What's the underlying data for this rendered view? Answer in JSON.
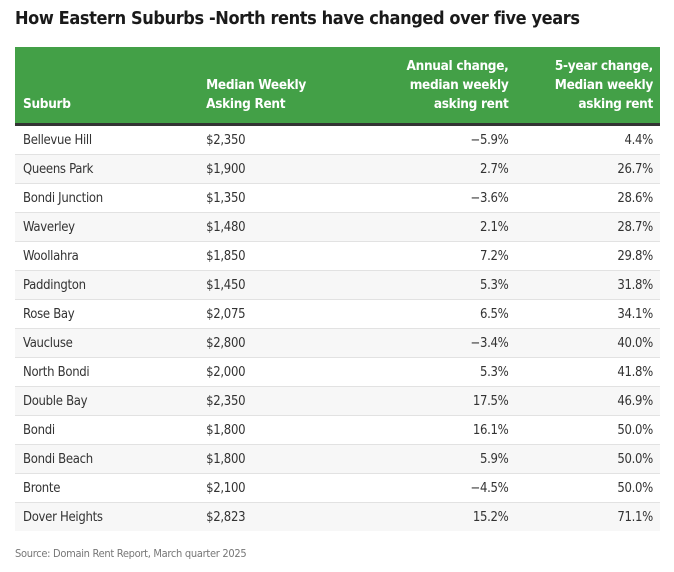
{
  "colors": {
    "header_bg": "#43a047",
    "header_text": "#ffffff",
    "stripe": "#f7f7f7"
  },
  "chart_data": {
    "type": "table",
    "title": "How Eastern Suburbs -North rents have changed over five years",
    "columns": [
      "Suburb",
      "Median Weekly Asking Rent",
      "Annual change, median weekly asking rent",
      "5-year change, Median weekly asking rent"
    ],
    "rows": [
      [
        "Bellevue Hill",
        "$2,350",
        "−5.9%",
        "4.4%"
      ],
      [
        "Queens Park",
        "$1,900",
        "2.7%",
        "26.7%"
      ],
      [
        "Bondi Junction",
        "$1,350",
        "−3.6%",
        "28.6%"
      ],
      [
        "Waverley",
        "$1,480",
        "2.1%",
        "28.7%"
      ],
      [
        "Woollahra",
        "$1,850",
        "7.2%",
        "29.8%"
      ],
      [
        "Paddington",
        "$1,450",
        "5.3%",
        "31.8%"
      ],
      [
        "Rose Bay",
        "$2,075",
        "6.5%",
        "34.1%"
      ],
      [
        "Vaucluse",
        "$2,800",
        "−3.4%",
        "40.0%"
      ],
      [
        "North Bondi",
        "$2,000",
        "5.3%",
        "41.8%"
      ],
      [
        "Double Bay",
        "$2,350",
        "17.5%",
        "46.9%"
      ],
      [
        "Bondi",
        "$1,800",
        "16.1%",
        "50.0%"
      ],
      [
        "Bondi Beach",
        "$1,800",
        "5.9%",
        "50.0%"
      ],
      [
        "Bronte",
        "$2,100",
        "−4.5%",
        "50.0%"
      ],
      [
        "Dover Heights",
        "$2,823",
        "15.2%",
        "71.1%"
      ]
    ],
    "source": "Source: Domain Rent Report, March quarter 2025"
  },
  "header_lines": {
    "col1": [
      "Suburb"
    ],
    "col2": [
      "Median Weekly",
      "Asking Rent"
    ],
    "col3": [
      "Annual change,",
      "median weekly",
      "asking rent"
    ],
    "col4": [
      "5-year change,",
      "Median weekly",
      "asking rent"
    ]
  }
}
